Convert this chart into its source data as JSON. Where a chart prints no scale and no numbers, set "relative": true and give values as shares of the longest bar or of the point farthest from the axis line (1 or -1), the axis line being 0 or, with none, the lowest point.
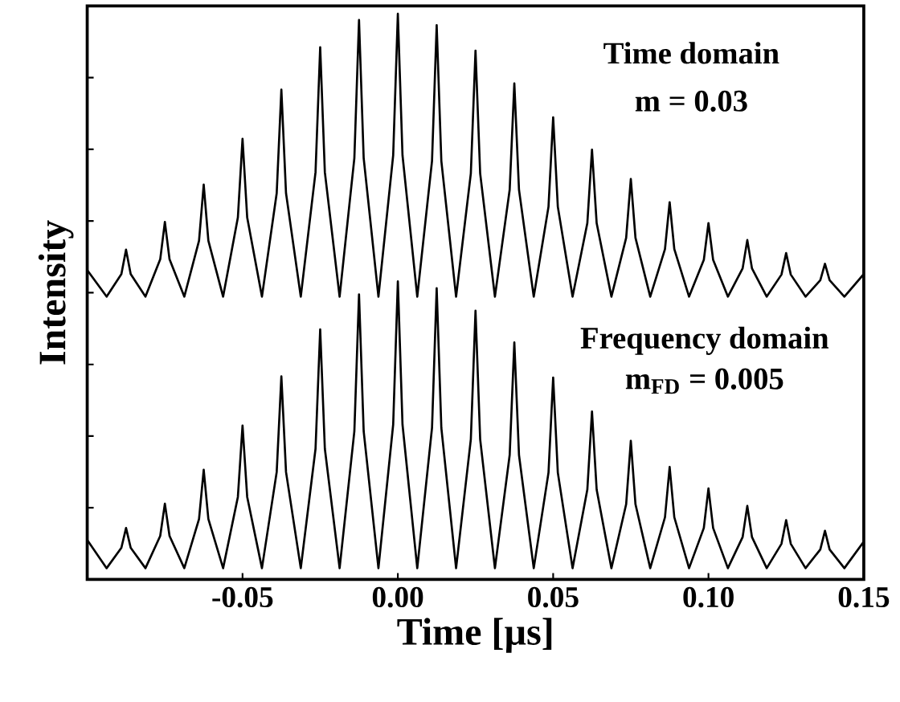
{
  "chart_data": {
    "type": "line",
    "relative": true,
    "xlabel": "Time [µs]",
    "ylabel": "Intensity",
    "annotations": [
      "Time domain",
      "m = 0.03",
      "Frequency domain",
      "m$_{FD}$ = 0.005"
    ],
    "xlim": [
      -0.1,
      0.15
    ],
    "xticks": [
      {
        "value": -0.05,
        "label": "-0.05"
      },
      {
        "value": 0,
        "label": "0.00"
      },
      {
        "value": 0.05,
        "label": "0.05"
      },
      {
        "value": 0.1,
        "label": "0.10"
      },
      {
        "value": 0.15,
        "label": "0.15"
      }
    ],
    "x": [
      -0.1,
      -0.09375,
      -0.089,
      -0.0875,
      -0.086,
      -0.08125,
      -0.0765,
      -0.075,
      -0.0735,
      -0.06875,
      -0.064,
      -0.0625,
      -0.061,
      -0.05625,
      -0.0515,
      -0.05,
      -0.0485,
      -0.04375,
      -0.039,
      -0.0375,
      -0.036,
      -0.03125,
      -0.0265,
      -0.025,
      -0.0235,
      -0.01875,
      -0.014,
      -0.0125,
      -0.011,
      -0.00625,
      -0.0015,
      0,
      0.0015,
      0.00625,
      0.011,
      0.0125,
      0.014,
      0.01875,
      0.0235,
      0.025,
      0.0265,
      0.03125,
      0.036,
      0.0375,
      0.039,
      0.04375,
      0.0485,
      0.05,
      0.0515,
      0.05625,
      0.061,
      0.0625,
      0.064,
      0.06875,
      0.0735,
      0.075,
      0.0765,
      0.08125,
      0.086,
      0.0875,
      0.089,
      0.09375,
      0.0985,
      0.1,
      0.1015,
      0.10625,
      0.111,
      0.1125,
      0.114,
      0.11875,
      0.1235,
      0.125,
      0.1265,
      0.13125,
      0.136,
      0.1375,
      0.139,
      0.14375,
      0.15
    ],
    "line_style": "solid",
    "marker": "none",
    "series": [
      {
        "color": "#000000",
        "values": [
          0.547,
          0.5,
          0.54,
          0.583,
          0.54,
          0.5,
          0.566,
          0.632,
          0.566,
          0.5,
          0.599,
          0.698,
          0.599,
          0.5,
          0.64,
          0.779,
          0.64,
          0.5,
          0.683,
          0.866,
          0.683,
          0.5,
          0.72,
          0.941,
          0.72,
          0.5,
          0.745,
          0.989,
          0.745,
          0.5,
          0.75,
          1.0,
          0.75,
          0.5,
          0.74,
          0.98,
          0.74,
          0.5,
          0.718,
          0.935,
          0.718,
          0.5,
          0.689,
          0.877,
          0.689,
          0.5,
          0.659,
          0.817,
          0.659,
          0.5,
          0.63,
          0.76,
          0.63,
          0.5,
          0.604,
          0.708,
          0.604,
          0.5,
          0.584,
          0.667,
          0.584,
          0.5,
          0.565,
          0.63,
          0.565,
          0.5,
          0.55,
          0.6,
          0.55,
          0.5,
          0.539,
          0.577,
          0.539,
          0.5,
          0.529,
          0.558,
          0.529,
          0.5,
          0.54
        ]
      },
      {
        "color": "#000000",
        "values": [
          0.07,
          0.02,
          0.056,
          0.091,
          0.056,
          0.02,
          0.077,
          0.134,
          0.077,
          0.02,
          0.107,
          0.194,
          0.107,
          0.02,
          0.146,
          0.272,
          0.146,
          0.02,
          0.19,
          0.359,
          0.19,
          0.02,
          0.231,
          0.442,
          0.231,
          0.02,
          0.262,
          0.504,
          0.262,
          0.02,
          0.274,
          0.527,
          0.274,
          0.02,
          0.268,
          0.515,
          0.268,
          0.02,
          0.248,
          0.475,
          0.248,
          0.02,
          0.22,
          0.419,
          0.22,
          0.02,
          0.189,
          0.357,
          0.189,
          0.02,
          0.159,
          0.297,
          0.159,
          0.02,
          0.133,
          0.245,
          0.133,
          0.02,
          0.11,
          0.199,
          0.11,
          0.02,
          0.091,
          0.161,
          0.091,
          0.02,
          0.075,
          0.13,
          0.075,
          0.02,
          0.063,
          0.105,
          0.063,
          0.02,
          0.053,
          0.086,
          0.053,
          0.02,
          0.067
        ]
      }
    ]
  }
}
